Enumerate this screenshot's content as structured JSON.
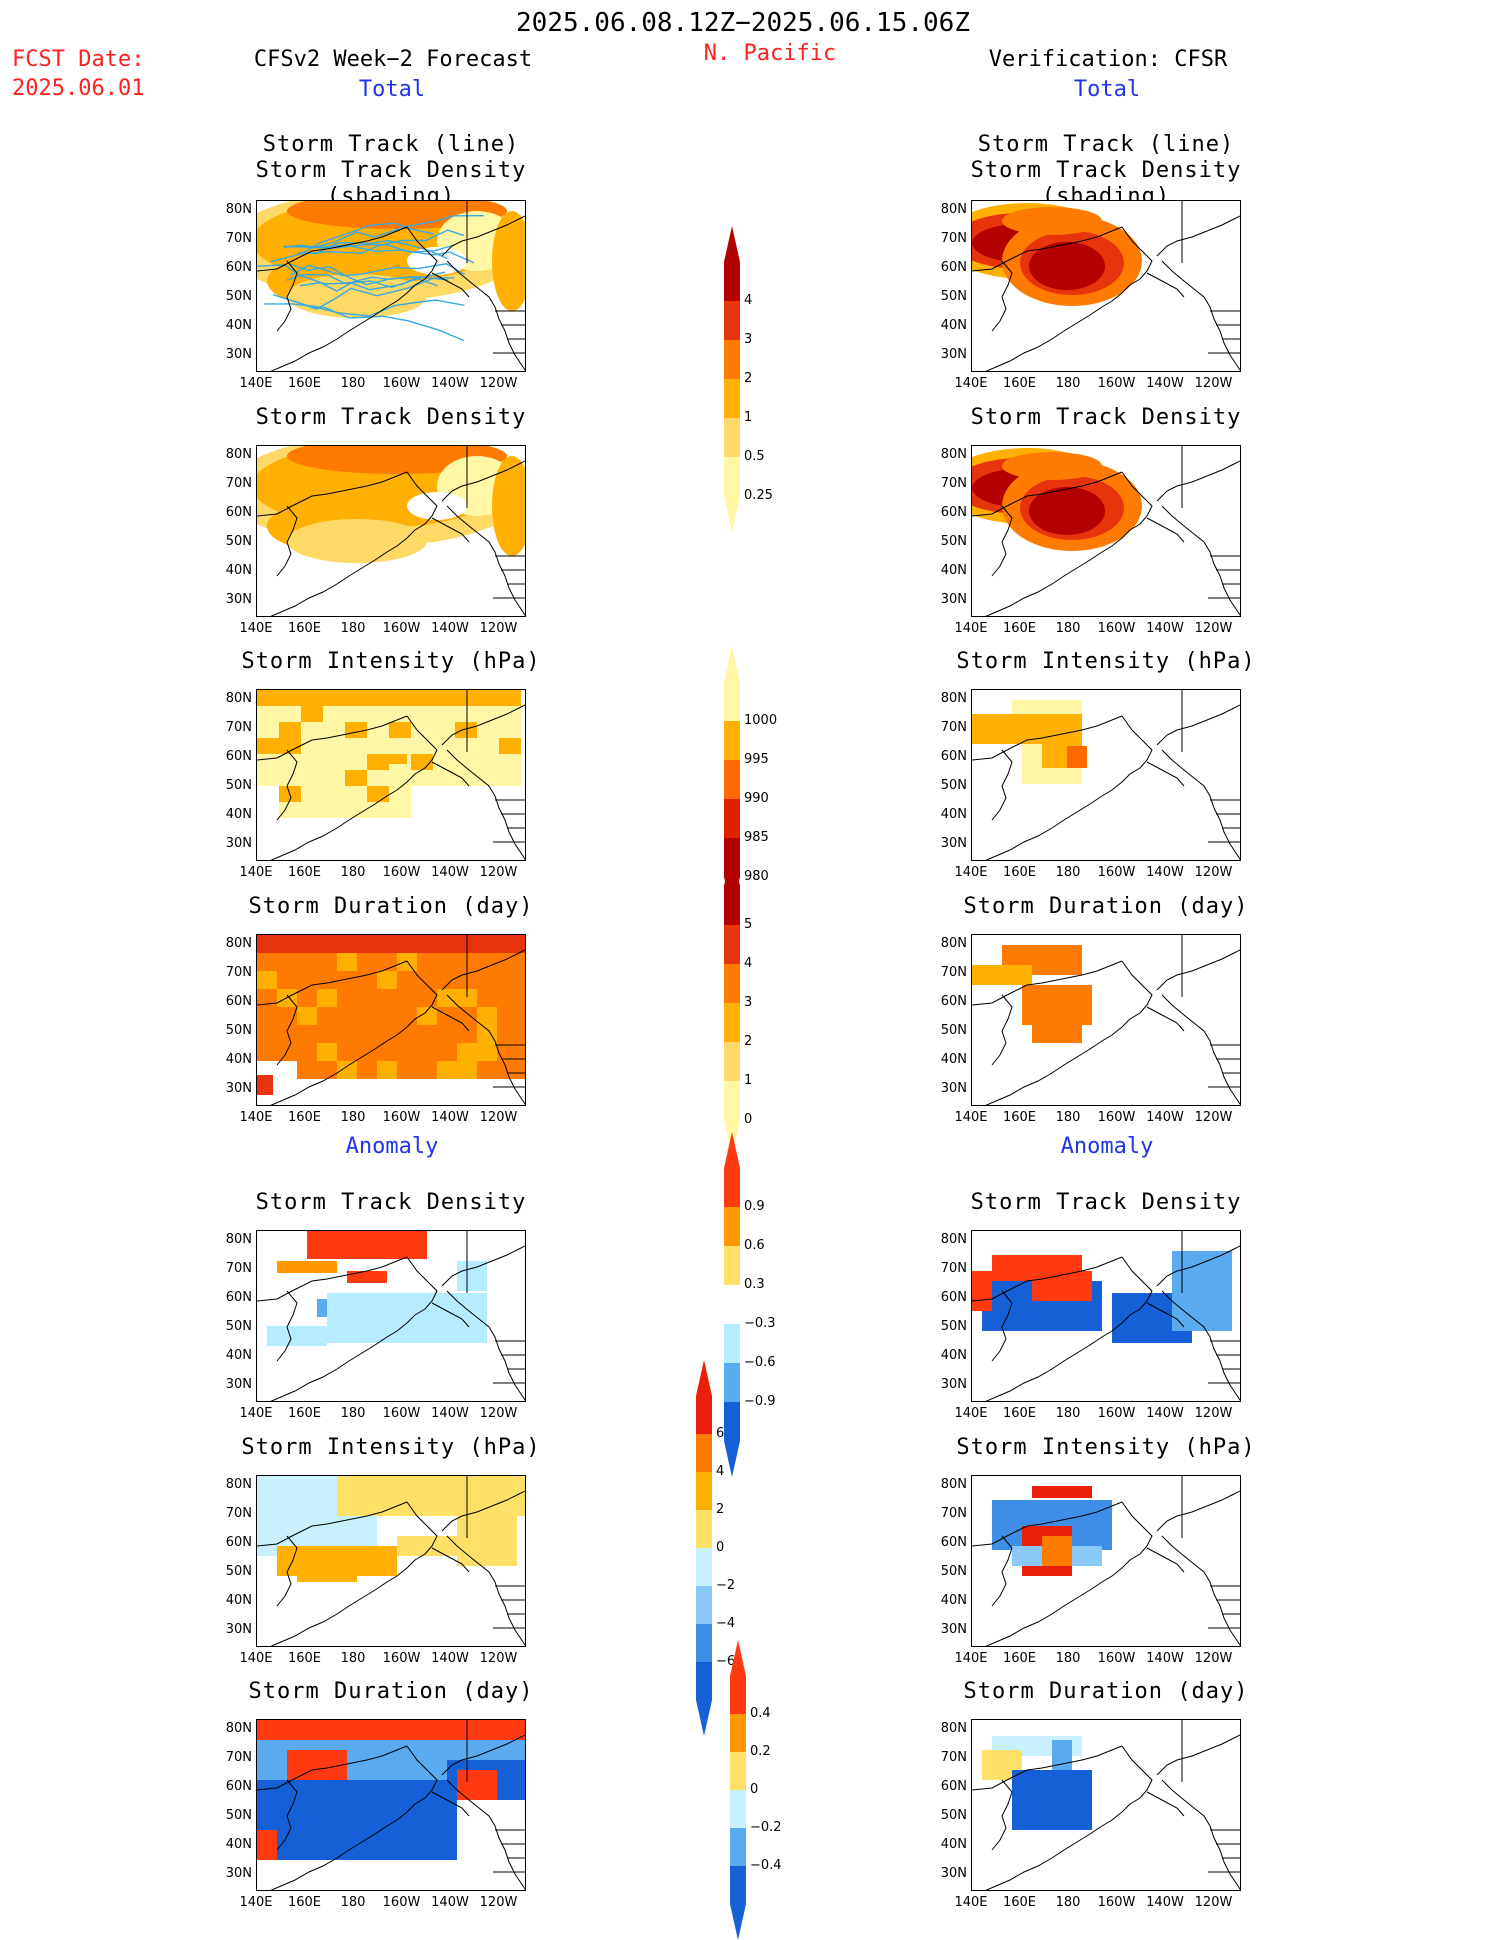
{
  "header": {
    "date_range": "2025.06.08.12Z−2025.06.15.06Z",
    "fcst_label": "FCST Date:",
    "fcst_date": "2025.06.01",
    "forecast_title": "CFSv2 Week−2 Forecast",
    "region": "N. Pacific",
    "verification_title": "Verification: CFSR"
  },
  "sections": {
    "total": "Total",
    "anomaly": "Anomaly"
  },
  "axes": {
    "lat_ticks": [
      "80N",
      "70N",
      "60N",
      "50N",
      "40N",
      "30N"
    ],
    "lon_ticks": [
      "140E",
      "160E",
      "180",
      "160W",
      "140W",
      "120W"
    ]
  },
  "panels": {
    "track_line_density_l1": "Storm Track (line)",
    "track_line_density_l2": "Storm Track Density (shading)",
    "track_density": "Storm Track Density",
    "intensity": "Storm Intensity (hPa)",
    "duration": "Storm Duration (day)"
  },
  "colorbars": {
    "density": {
      "labels": [
        "4",
        "3",
        "2",
        "1",
        "0.5",
        "0.25"
      ],
      "colors": [
        "#b30000",
        "#e8340c",
        "#ff7b00",
        "#ffb000",
        "#ffd966",
        "#fff6a6"
      ]
    },
    "intensity": {
      "labels": [
        "1000",
        "995",
        "990",
        "985",
        "980"
      ],
      "colors": [
        "#fff6a6",
        "#ffb000",
        "#ff6a00",
        "#e02000",
        "#b30000"
      ]
    },
    "duration": {
      "labels": [
        "5",
        "4",
        "3",
        "2",
        "1",
        "0"
      ],
      "colors": [
        "#b30000",
        "#e8340c",
        "#ff7b00",
        "#ffb000",
        "#ffd966",
        "#fff6a6"
      ]
    },
    "density_anom": {
      "labels": [
        "0.9",
        "0.6",
        "0.3",
        "−0.3",
        "−0.6",
        "−0.9"
      ],
      "colors": [
        "#ff3a10",
        "#ff9800",
        "#ffe066",
        "#ffffff",
        "#b6ecff",
        "#5aaaf0",
        "#1560d6"
      ]
    },
    "intensity_anom": {
      "labels": [
        "6",
        "4",
        "2",
        "0",
        "−2",
        "−4",
        "−6"
      ],
      "colors": [
        "#e8200a",
        "#ff7b00",
        "#ffb000",
        "#ffe066",
        "#c8f0ff",
        "#8ac8f8",
        "#3e8ee8",
        "#1560d6"
      ]
    },
    "duration_anom": {
      "labels": [
        "0.4",
        "0.2",
        "0",
        "−0.2",
        "−0.4"
      ],
      "colors": [
        "#ff3a10",
        "#ff9800",
        "#ffe066",
        "#c8f0ff",
        "#5aaaf0",
        "#1560d6"
      ]
    }
  }
}
